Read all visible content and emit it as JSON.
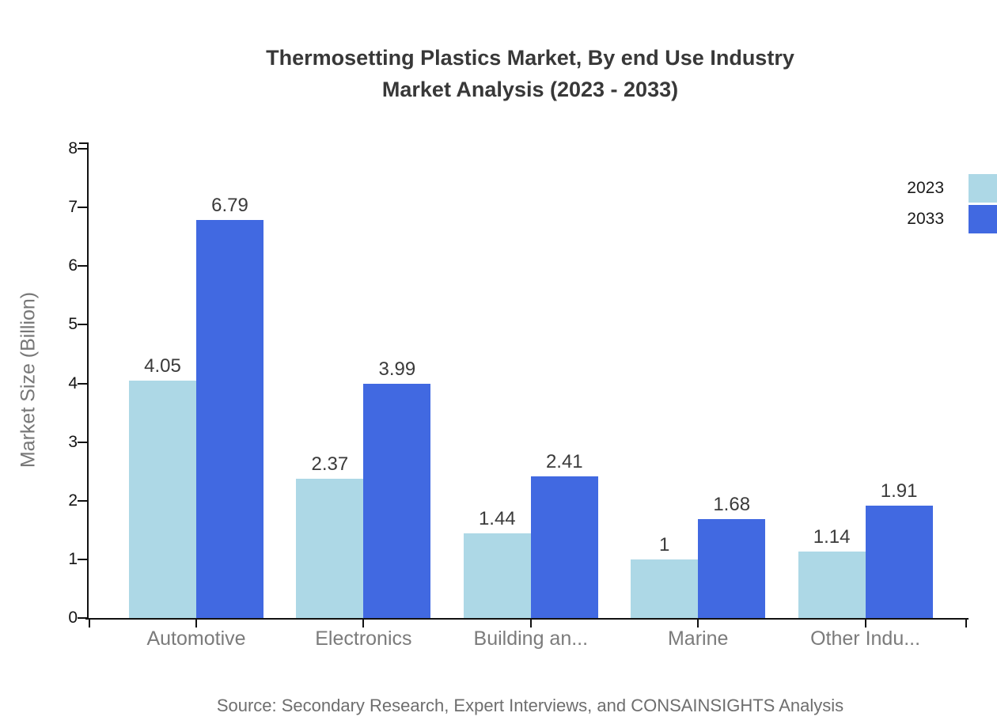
{
  "chart_data": {
    "type": "bar",
    "title": "Thermosetting Plastics Market, By end Use Industry",
    "subtitle": "Market Analysis (2023 - 2033)",
    "ylabel": "Market Size (Billion)",
    "ylim": [
      0,
      8
    ],
    "ytick_step": 1,
    "ytick_labels": [
      "0",
      "1",
      "2",
      "3",
      "4",
      "5",
      "6",
      "7",
      "8"
    ],
    "grid": false,
    "legend_position": "top-right",
    "categories": [
      "Automotive",
      "Electronics",
      "Building an...",
      "Marine",
      "Other Indu..."
    ],
    "series": [
      {
        "name": "2023",
        "color": "#ADD8E6",
        "values": [
          4.05,
          2.37,
          1.44,
          1,
          1.14
        ]
      },
      {
        "name": "2033",
        "color": "#4169E1",
        "values": [
          6.79,
          3.99,
          2.41,
          1.68,
          1.91
        ]
      }
    ],
    "value_labels_shown": true,
    "source": "Source: Secondary Research, Expert Interviews, and CONSAINSIGHTS Analysis",
    "colors": {
      "axis": "#111111",
      "title_text": "#383838",
      "category_text": "#7b7b7b",
      "muted_text": "#6e6e6e"
    }
  }
}
